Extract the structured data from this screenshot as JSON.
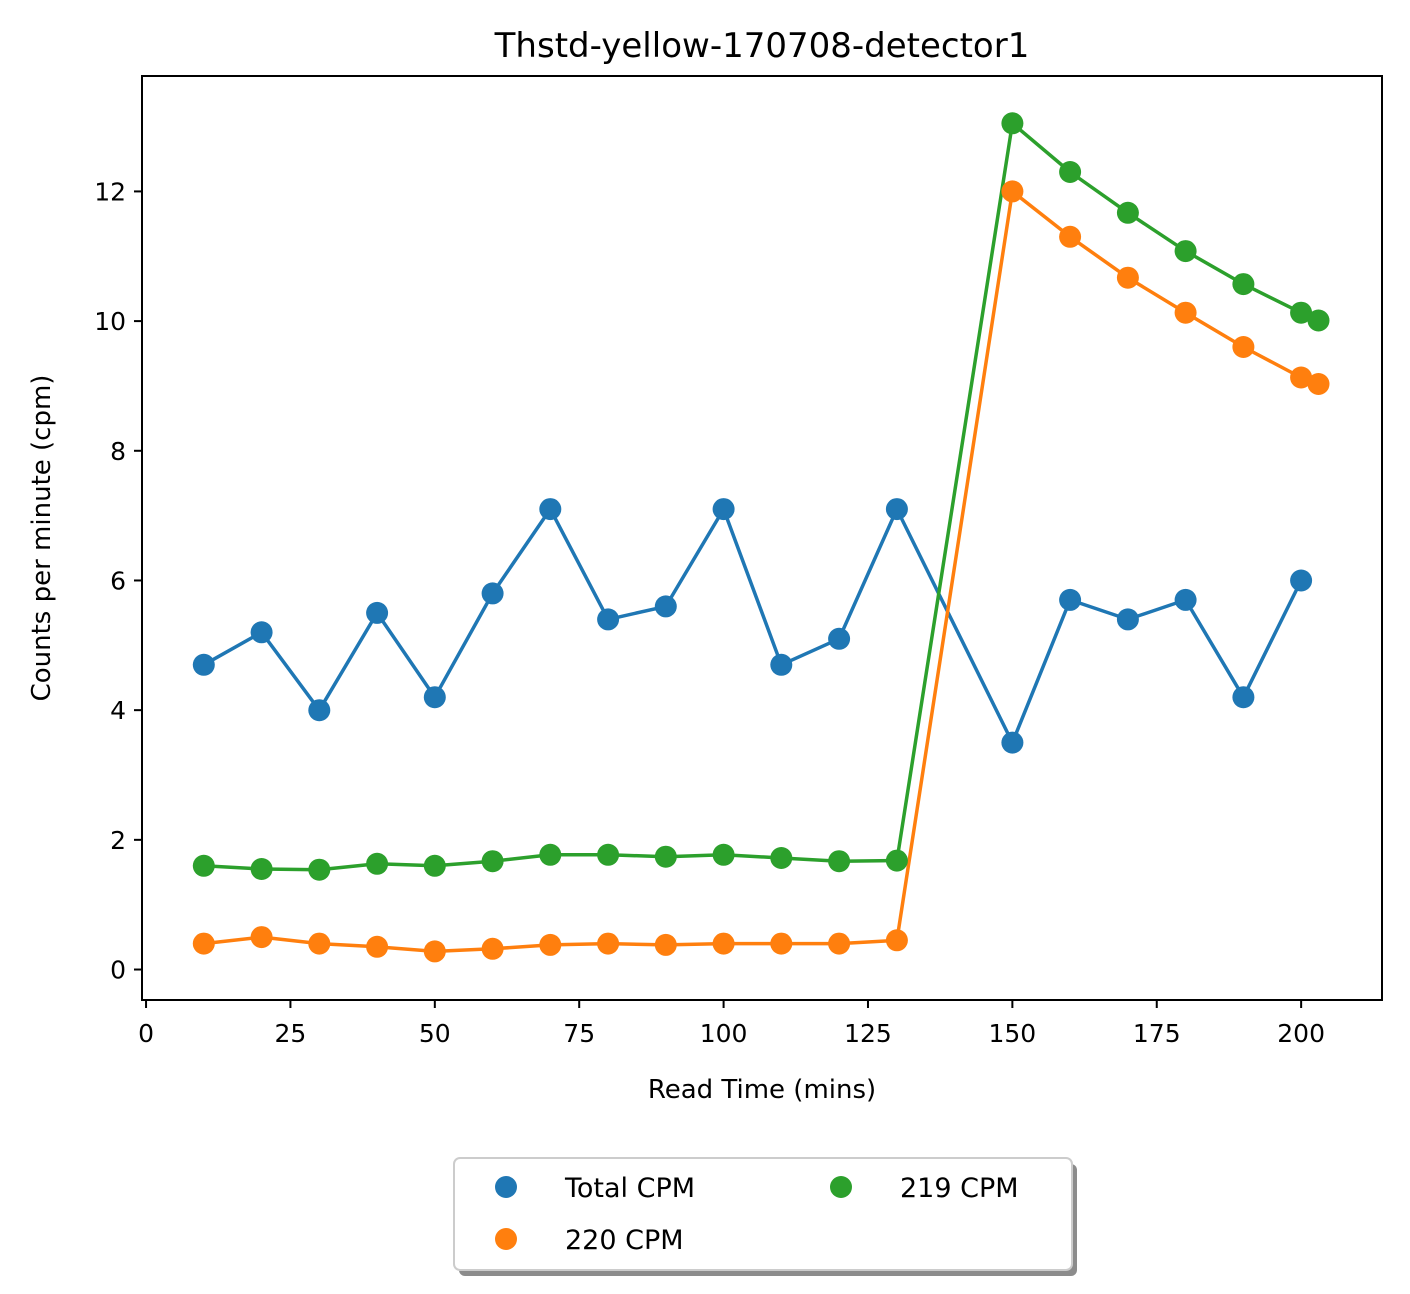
{
  "chart_data": {
    "type": "line",
    "title": "Thstd-yellow-170708-detector1",
    "xlabel": "Read Time (mins)",
    "ylabel": "Counts per minute (cpm)",
    "xlim": [
      -0.7,
      214
    ],
    "ylim": [
      -0.47,
      13.78
    ],
    "xticks": [
      0,
      25,
      50,
      75,
      100,
      125,
      150,
      175,
      200
    ],
    "yticks": [
      0,
      2,
      4,
      6,
      8,
      10,
      12
    ],
    "grid": false,
    "legend": {
      "placement": "bottom-center",
      "columns": 2
    },
    "x": [
      10,
      20,
      30,
      40,
      50,
      60,
      70,
      80,
      90,
      100,
      110,
      120,
      130,
      150,
      160,
      170,
      180,
      190,
      200,
      203
    ],
    "series": [
      {
        "name": "Total CPM",
        "color": "#1f77b4",
        "values": [
          4.7,
          5.2,
          4.0,
          5.5,
          4.2,
          5.8,
          7.1,
          5.4,
          5.6,
          7.1,
          4.7,
          5.1,
          7.1,
          3.5,
          5.7,
          5.4,
          5.7,
          4.2,
          6.0,
          null
        ]
      },
      {
        "name": "220 CPM",
        "color": "#ff7f0e",
        "values": [
          0.4,
          0.5,
          0.4,
          0.35,
          0.28,
          0.32,
          0.38,
          0.4,
          0.38,
          0.4,
          0.4,
          0.4,
          0.45,
          12.0,
          11.3,
          10.67,
          10.13,
          9.6,
          9.13,
          9.03
        ]
      },
      {
        "name": "219 CPM",
        "color": "#2ca02c",
        "values": [
          1.6,
          1.55,
          1.54,
          1.63,
          1.6,
          1.67,
          1.77,
          1.77,
          1.74,
          1.77,
          1.72,
          1.67,
          1.68,
          13.05,
          12.3,
          11.67,
          11.08,
          10.57,
          10.13,
          10.01
        ]
      }
    ]
  }
}
